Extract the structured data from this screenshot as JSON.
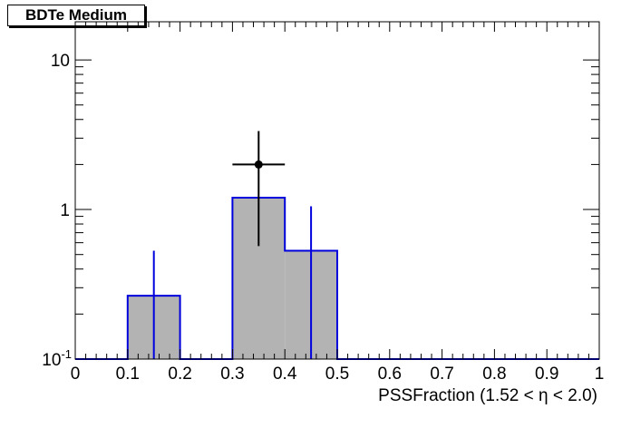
{
  "chart_data": {
    "type": "bar",
    "title": "BDTe Medium",
    "xlabel": "PSSFraction (1.52 <  η < 2.0)",
    "ylabel": "",
    "xlim": [
      0,
      1
    ],
    "ylim": [
      0.1,
      18
    ],
    "yscale": "log",
    "grid": false,
    "x_tick_labels": [
      "0",
      "0.1",
      "0.2",
      "0.3",
      "0.4",
      "0.5",
      "0.6",
      "0.7",
      "0.8",
      "0.9",
      "1"
    ],
    "y_tick_labels": [
      {
        "value": 0.1,
        "label": "10",
        "sup": "-1"
      },
      {
        "value": 1,
        "label": "1",
        "sup": ""
      },
      {
        "value": 10,
        "label": "10",
        "sup": ""
      }
    ],
    "bin_edges": [
      0,
      0.1,
      0.2,
      0.3,
      0.4,
      0.5,
      0.6,
      0.7,
      0.8,
      0.9,
      1.0
    ],
    "series": [
      {
        "type": "histogram",
        "values": [
          0,
          0.265,
          0,
          1.2,
          0.53,
          0,
          0,
          0,
          0,
          0
        ],
        "errors": [
          {
            "x": 0.15,
            "low": 0.1,
            "high": 0.53
          },
          {
            "x": 0.45,
            "low": 0.1,
            "high": 1.05
          }
        ],
        "fill": "#b3b3b3",
        "line": "#0000dd"
      },
      {
        "type": "points",
        "points": [
          {
            "x": 0.35,
            "y": 2.0,
            "xerr": 0.05,
            "ylow": 0.57,
            "yhigh": 3.35
          }
        ],
        "color": "#000000"
      }
    ]
  }
}
